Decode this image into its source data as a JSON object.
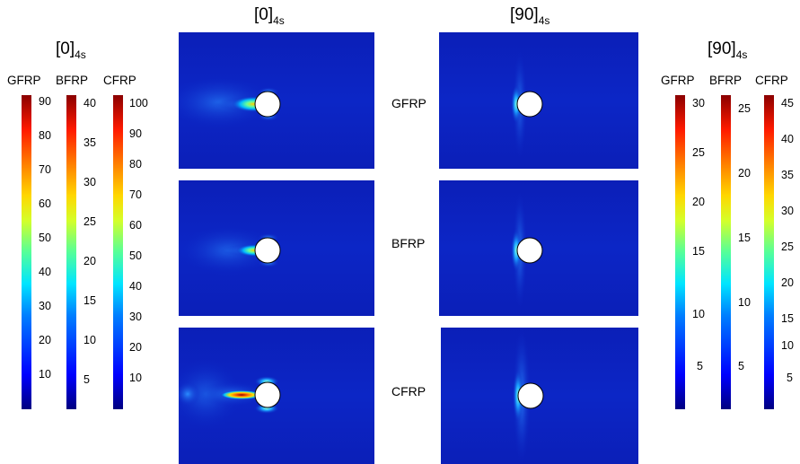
{
  "column_headings": {
    "left": {
      "base": "[0]",
      "sub": "4s"
    },
    "right": {
      "base": "[90]",
      "sub": "4s"
    }
  },
  "colorbar_groups": {
    "left": {
      "heading": {
        "base": "[0]",
        "sub": "4s"
      },
      "bars": [
        {
          "name": "GFRP",
          "ticks": [
            "90",
            "80",
            "70",
            "60",
            "50",
            "40",
            "30",
            "20",
            "10"
          ]
        },
        {
          "name": "BFRP",
          "ticks": [
            "40",
            "35",
            "30",
            "25",
            "20",
            "15",
            "10",
            "5"
          ]
        },
        {
          "name": "CFRP",
          "ticks": [
            "100",
            "90",
            "80",
            "70",
            "60",
            "50",
            "40",
            "30",
            "20",
            "10"
          ]
        }
      ]
    },
    "right": {
      "heading": {
        "base": "[90]",
        "sub": "4s"
      },
      "bars": [
        {
          "name": "GFRP",
          "ticks": [
            "30",
            "25",
            "20",
            "15",
            "10",
            "5"
          ]
        },
        {
          "name": "BFRP",
          "ticks": [
            "25",
            "20",
            "15",
            "10",
            "5"
          ]
        },
        {
          "name": "CFRP",
          "ticks": [
            "45",
            "40",
            "35",
            "30",
            "25",
            "20",
            "15",
            "10",
            "5"
          ]
        }
      ]
    }
  },
  "row_labels": [
    "GFRP",
    "BFRP",
    "CFRP"
  ],
  "colors": {
    "field_background": "#0a22bf",
    "hot": "#8b0000",
    "hole_fill": "#ffffff"
  }
}
